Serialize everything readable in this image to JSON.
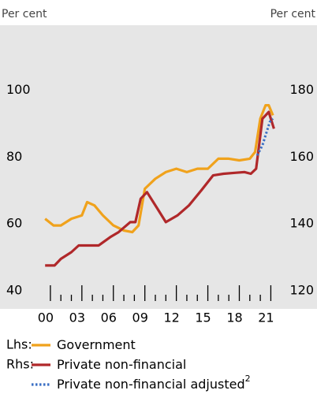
{
  "chart_data": {
    "type": "line",
    "y_axis_label": "Per cent",
    "y2_axis_label": "Per cent",
    "xlim": [
      1995.2,
      2025.4
    ],
    "xticks": [
      {
        "value": 2000,
        "label": "00"
      },
      {
        "value": 2003,
        "label": "03"
      },
      {
        "value": 2006,
        "label": "06"
      },
      {
        "value": 2009,
        "label": "09"
      },
      {
        "value": 2012,
        "label": "12"
      },
      {
        "value": 2015,
        "label": "15"
      },
      {
        "value": 2018,
        "label": "18"
      },
      {
        "value": 2021,
        "label": "21"
      }
    ],
    "xminorticks": [
      2001,
      2002,
      2004,
      2005,
      2007,
      2008,
      2010,
      2011,
      2013,
      2014,
      2016,
      2017,
      2019,
      2020
    ],
    "ylim": [
      35,
      120
    ],
    "yticks": [
      40,
      60,
      80,
      100
    ],
    "y2lim": [
      115,
      200
    ],
    "y2ticks": [
      120,
      140,
      160,
      180
    ],
    "grid": false,
    "series": [
      {
        "name": "Government",
        "legend_prefix": "Lhs:",
        "color": "#f0a21c",
        "style": "solid",
        "x": [
          1999.5,
          2000.3,
          2001,
          2002,
          2003,
          2003.5,
          2004.2,
          2005,
          2006,
          2007,
          2007.8,
          2008.4,
          2009,
          2010,
          2011,
          2012,
          2013,
          2014,
          2015,
          2016,
          2017,
          2018,
          2019,
          2019.5,
          2020,
          2020.5,
          2020.8,
          2021.2
        ],
        "values": [
          62,
          60,
          60,
          62,
          63,
          67,
          66,
          63,
          60,
          58.5,
          58,
          60,
          71,
          74,
          76,
          77,
          76,
          77,
          77,
          80,
          80,
          79.5,
          80,
          82,
          92,
          96,
          96,
          93
        ]
      },
      {
        "name": "Private non-financial",
        "legend_prefix": "Rhs:",
        "color": "#b0282a",
        "style": "solid",
        "axis": "y2",
        "x": [
          1999.5,
          2000.4,
          2001,
          2002,
          2002.7,
          2004,
          2004.6,
          2005.7,
          2006.5,
          2007.6,
          2008.1,
          2008.6,
          2009.2,
          2010.2,
          2011,
          2012.1,
          2013.2,
          2014.4,
          2015.5,
          2016.5,
          2017.7,
          2018.5,
          2019.1,
          2019.6,
          2020.2,
          2020.8,
          2021.3
        ],
        "values": [
          128,
          128,
          130,
          132,
          134,
          134,
          134,
          136.5,
          138,
          141,
          141,
          148,
          150,
          145,
          141,
          143,
          146,
          150.6,
          155,
          155.5,
          155.8,
          156,
          155.5,
          157,
          172,
          174,
          169
        ]
      },
      {
        "name": "Private non-financial adjusted",
        "footnote": "2",
        "color": "#3b6fc4",
        "style": "dotted",
        "axis": "y2",
        "x": [
          2019.7,
          2020.2,
          2020.9,
          2021.2
        ],
        "values": [
          161,
          164,
          171,
          172
        ]
      }
    ]
  }
}
